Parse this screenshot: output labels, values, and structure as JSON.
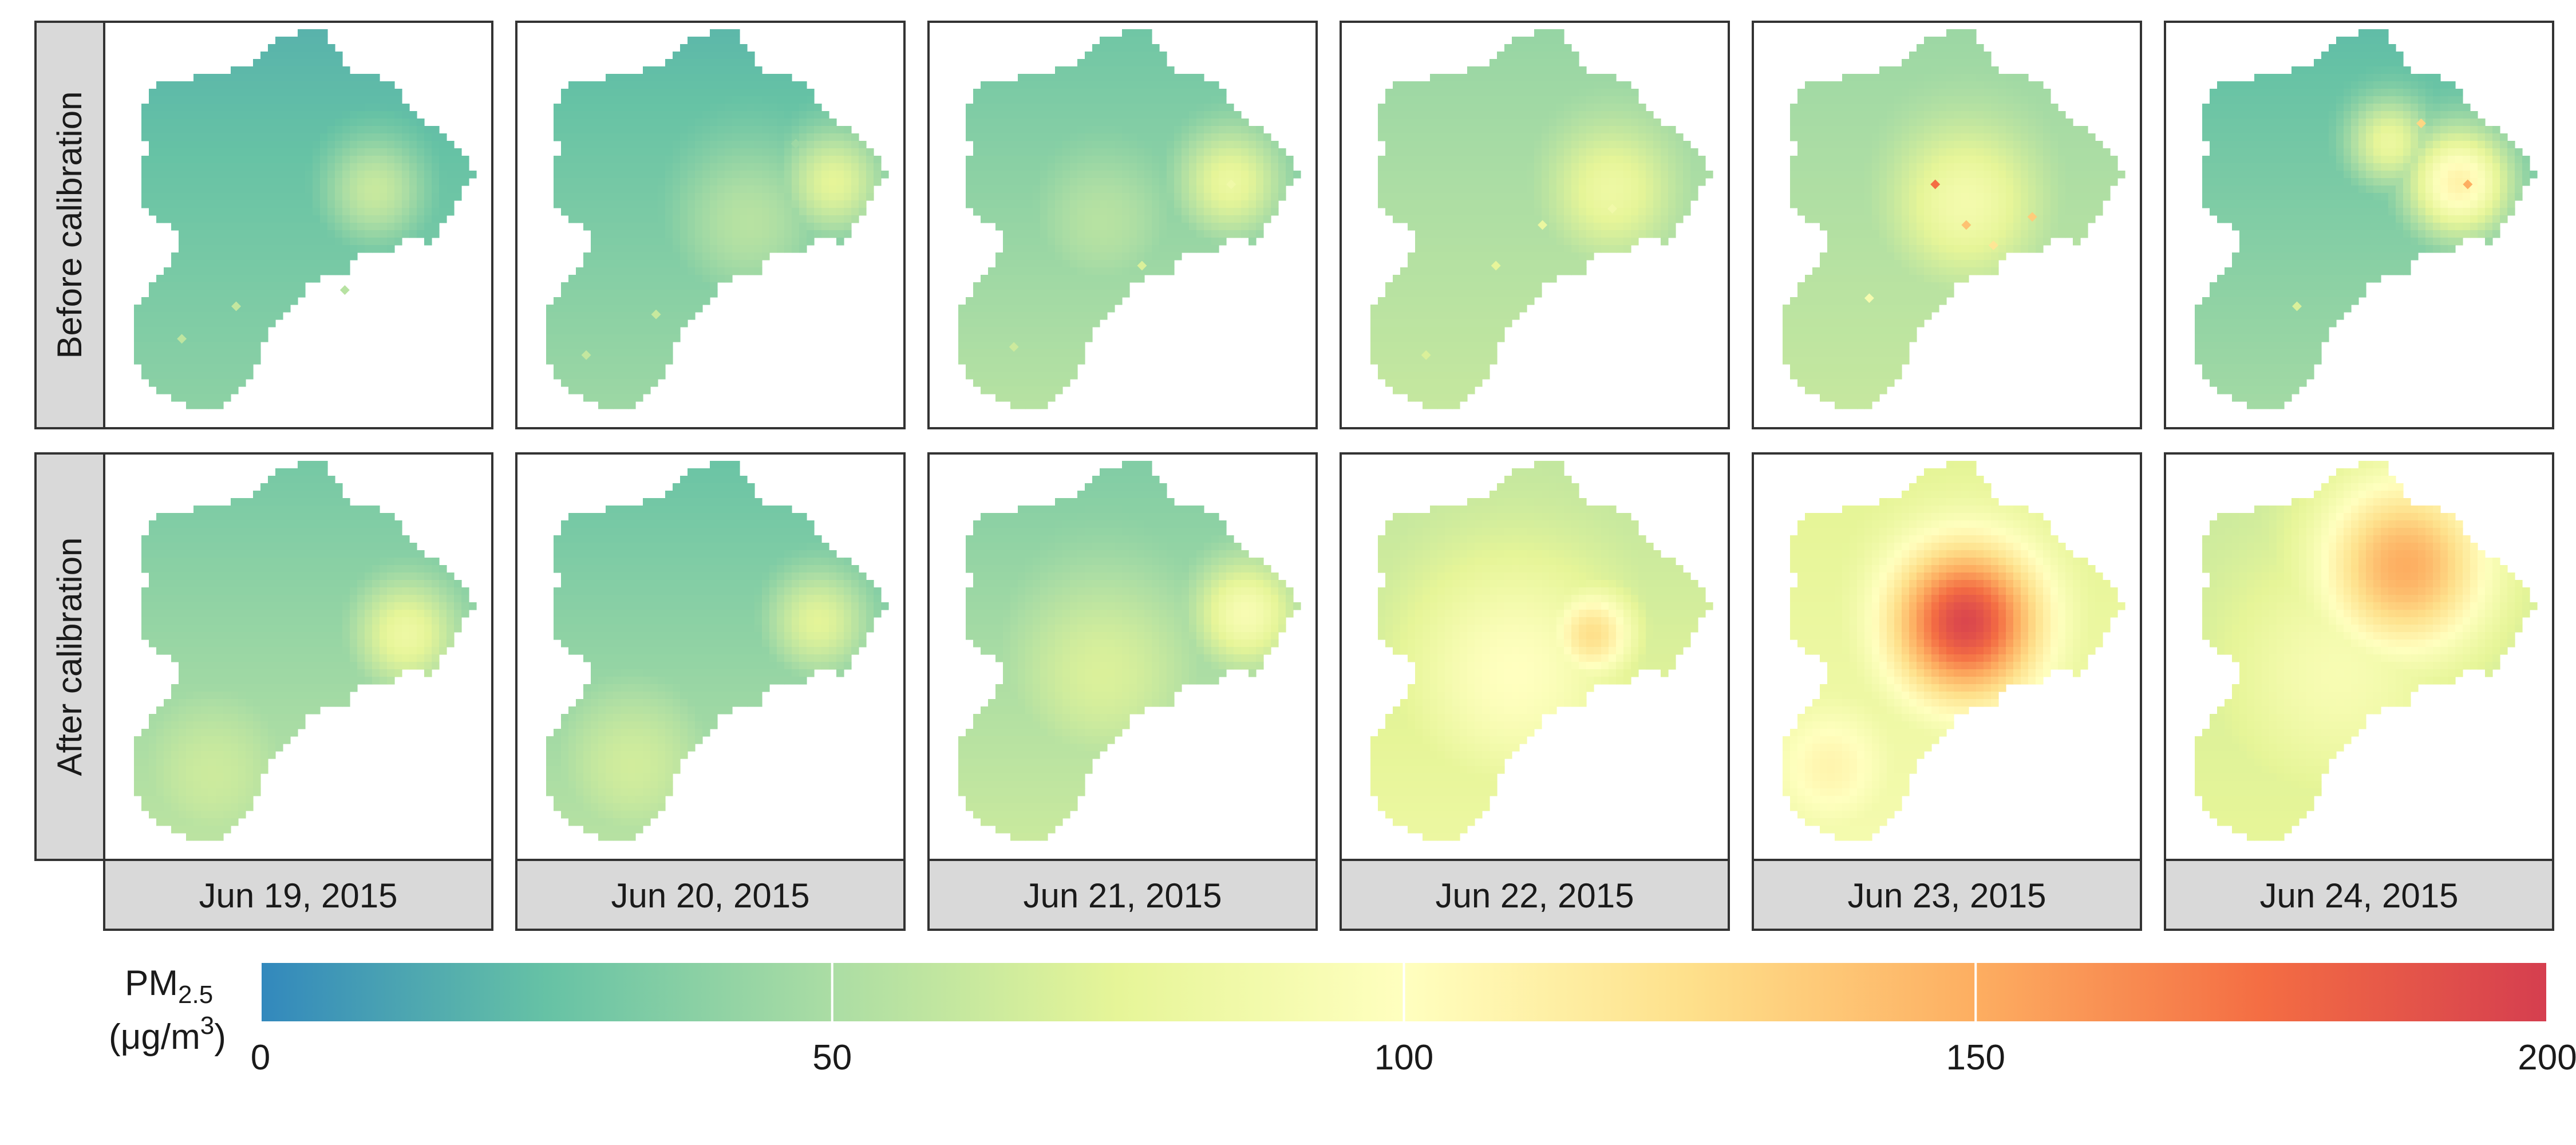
{
  "chart_data": {
    "type": "heatmap",
    "rows": [
      "Before calibration",
      "After calibration"
    ],
    "columns": [
      "Jun 19, 2015",
      "Jun 20, 2015",
      "Jun 21, 2015",
      "Jun 22, 2015",
      "Jun 23, 2015",
      "Jun 24, 2015"
    ],
    "colorbar": {
      "title": "PM",
      "title_subscript": "2.5",
      "unit_prefix": "(μg/m",
      "unit_superscript": "3",
      "unit_suffix": ")",
      "ticks": [
        "0",
        "50",
        "100",
        "150",
        "200"
      ],
      "tick_values": [
        0,
        50,
        100,
        150,
        200
      ],
      "range": [
        0,
        200
      ],
      "colors": [
        "#3288bd",
        "#66c2a5",
        "#abdda4",
        "#e6f598",
        "#ffffbf",
        "#fee08b",
        "#fdae61",
        "#f46d43",
        "#d53e4f"
      ]
    },
    "panels": [
      {
        "row": "Before calibration",
        "date": "Jun 19, 2015",
        "base": 18,
        "gradient": 22,
        "hotspots": [
          {
            "u": 0.7,
            "v": 0.42,
            "value": 62,
            "spread": 0.1
          }
        ],
        "monitors": [
          {
            "u": 0.34,
            "v": 0.7,
            "value": 60
          },
          {
            "u": 0.2,
            "v": 0.78,
            "value": 58
          },
          {
            "u": 0.62,
            "v": 0.66,
            "value": 55
          }
        ]
      },
      {
        "row": "Before calibration",
        "date": "Jun 20, 2015",
        "base": 20,
        "gradient": 26,
        "hotspots": [
          {
            "u": 0.82,
            "v": 0.4,
            "value": 75,
            "spread": 0.1
          },
          {
            "u": 0.6,
            "v": 0.5,
            "value": 55,
            "spread": 0.16
          }
        ],
        "monitors": [
          {
            "u": 0.36,
            "v": 0.72,
            "value": 62
          },
          {
            "u": 0.18,
            "v": 0.82,
            "value": 60
          },
          {
            "u": 0.72,
            "v": 0.3,
            "value": 45
          }
        ]
      },
      {
        "row": "Before calibration",
        "date": "Jun 21, 2015",
        "base": 28,
        "gradient": 28,
        "hotspots": [
          {
            "u": 0.78,
            "v": 0.4,
            "value": 80,
            "spread": 0.1
          },
          {
            "u": 0.45,
            "v": 0.5,
            "value": 55,
            "spread": 0.15
          }
        ],
        "monitors": [
          {
            "u": 0.55,
            "v": 0.6,
            "value": 70
          },
          {
            "u": 0.22,
            "v": 0.8,
            "value": 64
          },
          {
            "u": 0.78,
            "v": 0.4,
            "value": 85
          }
        ]
      },
      {
        "row": "Before calibration",
        "date": "Jun 22, 2015",
        "base": 42,
        "gradient": 20,
        "hotspots": [
          {
            "u": 0.7,
            "v": 0.42,
            "value": 82,
            "spread": 0.12
          }
        ],
        "monitors": [
          {
            "u": 0.52,
            "v": 0.5,
            "value": 80
          },
          {
            "u": 0.4,
            "v": 0.6,
            "value": 76
          },
          {
            "u": 0.7,
            "v": 0.46,
            "value": 86
          },
          {
            "u": 0.22,
            "v": 0.82,
            "value": 70
          }
        ]
      },
      {
        "row": "Before calibration",
        "date": "Jun 23, 2015",
        "base": 44,
        "gradient": 18,
        "hotspots": [
          {
            "u": 0.55,
            "v": 0.45,
            "value": 88,
            "spread": 0.14
          }
        ],
        "monitors": [
          {
            "u": 0.47,
            "v": 0.4,
            "value": 175
          },
          {
            "u": 0.55,
            "v": 0.5,
            "value": 140
          },
          {
            "u": 0.72,
            "v": 0.48,
            "value": 135
          },
          {
            "u": 0.62,
            "v": 0.55,
            "value": 120
          },
          {
            "u": 0.3,
            "v": 0.68,
            "value": 90
          }
        ]
      },
      {
        "row": "Before calibration",
        "date": "Jun 24, 2015",
        "base": 22,
        "gradient": 26,
        "hotspots": [
          {
            "u": 0.76,
            "v": 0.4,
            "value": 110,
            "spread": 0.1
          },
          {
            "u": 0.58,
            "v": 0.3,
            "value": 80,
            "spread": 0.08
          }
        ],
        "monitors": [
          {
            "u": 0.78,
            "v": 0.4,
            "value": 150
          },
          {
            "u": 0.66,
            "v": 0.25,
            "value": 130
          },
          {
            "u": 0.34,
            "v": 0.7,
            "value": 70
          }
        ]
      },
      {
        "row": "After calibration",
        "date": "Jun 19, 2015",
        "base": 30,
        "gradient": 28,
        "hotspots": [
          {
            "u": 0.78,
            "v": 0.45,
            "value": 82,
            "spread": 0.1
          },
          {
            "u": 0.28,
            "v": 0.8,
            "value": 64,
            "spread": 0.18
          }
        ],
        "monitors": []
      },
      {
        "row": "After calibration",
        "date": "Jun 20, 2015",
        "base": 26,
        "gradient": 30,
        "hotspots": [
          {
            "u": 0.78,
            "v": 0.42,
            "value": 74,
            "spread": 0.1
          },
          {
            "u": 0.3,
            "v": 0.78,
            "value": 66,
            "spread": 0.18
          }
        ],
        "monitors": []
      },
      {
        "row": "After calibration",
        "date": "Jun 21, 2015",
        "base": 34,
        "gradient": 30,
        "hotspots": [
          {
            "u": 0.82,
            "v": 0.4,
            "value": 92,
            "spread": 0.1
          },
          {
            "u": 0.45,
            "v": 0.55,
            "value": 70,
            "spread": 0.2
          }
        ],
        "monitors": []
      },
      {
        "row": "After calibration",
        "date": "Jun 22, 2015",
        "base": 58,
        "gradient": 24,
        "hotspots": [
          {
            "u": 0.65,
            "v": 0.45,
            "value": 125,
            "spread": 0.08
          },
          {
            "u": 0.45,
            "v": 0.55,
            "value": 100,
            "spread": 0.22
          }
        ],
        "monitors": []
      },
      {
        "row": "After calibration",
        "date": "Jun 23, 2015",
        "base": 72,
        "gradient": 18,
        "hotspots": [
          {
            "u": 0.55,
            "v": 0.42,
            "value": 195,
            "spread": 0.14
          },
          {
            "u": 0.2,
            "v": 0.78,
            "value": 108,
            "spread": 0.12
          }
        ],
        "monitors": []
      },
      {
        "row": "After calibration",
        "date": "Jun 24, 2015",
        "base": 62,
        "gradient": 14,
        "hotspots": [
          {
            "u": 0.62,
            "v": 0.28,
            "value": 150,
            "spread": 0.16
          },
          {
            "u": 0.45,
            "v": 0.55,
            "value": 92,
            "spread": 0.22
          }
        ],
        "monitors": []
      }
    ]
  }
}
